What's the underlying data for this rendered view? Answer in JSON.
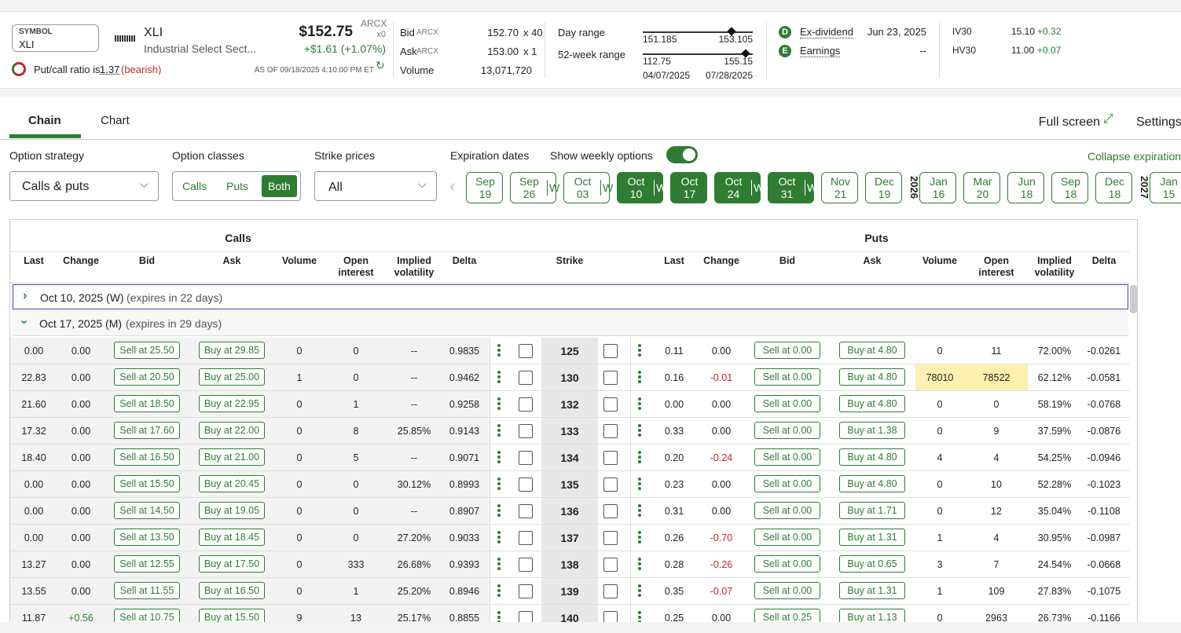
{
  "header": {
    "symbol_label": "SYMBOL",
    "symbol": "XLI",
    "ticker": "XLI",
    "name": "Industrial Select Sect...",
    "price": "$152.75",
    "price_exchange": "ARCX",
    "price_size": "x0",
    "change": "+$1.61 (+1.07%)",
    "as_of": "AS OF 09/18/2025 4:10:00 PM ET",
    "put_call_text": "Put/call ratio is",
    "put_call_ratio": "1.37",
    "put_call_sentiment": "(bearish)",
    "bid_label": "Bid",
    "bid_exchange": "ARCX",
    "bid": "152.70",
    "bid_size": "x 40",
    "ask_label": "Ask",
    "ask_exchange": "ARCX",
    "ask": "153.00",
    "ask_size": "x 1",
    "volume_label": "Volume",
    "volume": "13,071,720",
    "day_range_label": "Day range",
    "day_low": "151.185",
    "day_high": "153.105",
    "week52_label": "52-week range",
    "week52_low": "112.75",
    "week52_high": "155.15",
    "week52_low_date": "04/07/2025",
    "week52_high_date": "07/28/2025",
    "ex_div_icon": "D",
    "ex_div_label": "Ex-dividend",
    "ex_div_date": "Jun 23, 2025",
    "earnings_icon": "E",
    "earnings_label": "Earnings",
    "earnings_date": "--",
    "iv30_label": "IV30",
    "iv30": "15.10",
    "iv30_change": "+0.32",
    "hv30_label": "HV30",
    "hv30": "11.00",
    "hv30_change": "+0.07"
  },
  "tabs": {
    "chain": "Chain",
    "chart": "Chart",
    "full_screen": "Full screen",
    "settings": "Settings"
  },
  "controls": {
    "strategy_label": "Option strategy",
    "strategy": "Calls & puts",
    "classes_label": "Option classes",
    "classes": [
      "Calls",
      "Puts",
      "Both"
    ],
    "strikes_label": "Strike prices",
    "strikes": "All",
    "expirations_label": "Expiration dates",
    "weekly_label": "Show weekly options",
    "collapse": "Collapse expirations"
  },
  "expirations": [
    {
      "month": "Sep",
      "day": "19",
      "selected": false
    },
    {
      "month": "Sep",
      "day": "26",
      "weekly": "W",
      "selected": false
    },
    {
      "month": "Oct",
      "day": "03",
      "weekly": "W",
      "selected": false
    },
    {
      "month": "Oct",
      "day": "10",
      "weekly": "W",
      "selected": true
    },
    {
      "month": "Oct",
      "day": "17",
      "selected": true
    },
    {
      "month": "Oct",
      "day": "24",
      "weekly": "W",
      "selected": true
    },
    {
      "month": "Oct",
      "day": "31",
      "weekly": "W",
      "selected": true
    },
    {
      "month": "Nov",
      "day": "21",
      "selected": false
    },
    {
      "month": "Dec",
      "day": "19",
      "selected": false
    },
    {
      "year": "2026"
    },
    {
      "month": "Jan",
      "day": "16",
      "selected": false
    },
    {
      "month": "Mar",
      "day": "20",
      "selected": false
    },
    {
      "month": "Jun",
      "day": "18",
      "selected": false
    },
    {
      "month": "Sep",
      "day": "18",
      "selected": false
    },
    {
      "month": "Dec",
      "day": "18",
      "selected": false
    },
    {
      "year": "2027"
    },
    {
      "month": "Jan",
      "day": "15",
      "selected": false
    }
  ],
  "chain": {
    "calls_title": "Calls",
    "puts_title": "Puts",
    "strike_title": "Strike",
    "columns": [
      "Last",
      "Change",
      "Bid",
      "Ask",
      "Volume",
      "Open interest",
      "Implied volatility",
      "Delta"
    ],
    "groups": [
      {
        "date": "Oct 10, 2025 (W)",
        "expires": "(expires in 22 days)",
        "expanded": false
      },
      {
        "date": "Oct 17, 2025 (M)",
        "expires": "(expires in 29 days)",
        "expanded": true,
        "rows": [
          {
            "strike": "125",
            "calls": [
              "0.00",
              "0.00",
              "Sell at 25.50",
              "Buy at 29.85",
              "0",
              "0",
              "--",
              "0.9835"
            ],
            "puts": [
              "0.11",
              "0.00",
              "Sell at 0.00",
              "Buy at 4.80",
              "0",
              "11",
              "72.00%",
              "-0.0261"
            ]
          },
          {
            "strike": "130",
            "calls": [
              "22.83",
              "0.00",
              "Sell at 20.50",
              "Buy at 25.00",
              "1",
              "0",
              "--",
              "0.9462"
            ],
            "puts": [
              "0.16",
              "-0.01",
              "Sell at 0.00",
              "Buy at 4.80",
              "78010",
              "78522",
              "62.12%",
              "-0.0581"
            ]
          },
          {
            "strike": "132",
            "calls": [
              "21.60",
              "0.00",
              "Sell at 18.50",
              "Buy at 22.95",
              "0",
              "1",
              "--",
              "0.9258"
            ],
            "puts": [
              "0.00",
              "0.00",
              "Sell at 0.00",
              "Buy at 4.80",
              "0",
              "0",
              "58.19%",
              "-0.0768"
            ]
          },
          {
            "strike": "133",
            "calls": [
              "17.32",
              "0.00",
              "Sell at 17.60",
              "Buy at 22.00",
              "0",
              "8",
              "25.85%",
              "0.9143"
            ],
            "puts": [
              "0.33",
              "0.00",
              "Sell at 0.00",
              "Buy at 1.38",
              "0",
              "9",
              "37.59%",
              "-0.0876"
            ]
          },
          {
            "strike": "134",
            "calls": [
              "18.40",
              "0.00",
              "Sell at 16.50",
              "Buy at 21.00",
              "0",
              "5",
              "--",
              "0.9071"
            ],
            "puts": [
              "0.20",
              "-0.24",
              "Sell at 0.00",
              "Buy at 4.80",
              "4",
              "4",
              "54.25%",
              "-0.0946"
            ]
          },
          {
            "strike": "135",
            "calls": [
              "0.00",
              "0.00",
              "Sell at 15.50",
              "Buy at 20.45",
              "0",
              "0",
              "30.12%",
              "0.8993"
            ],
            "puts": [
              "0.23",
              "0.00",
              "Sell at 0.00",
              "Buy at 4.80",
              "0",
              "10",
              "52.28%",
              "-0.1023"
            ]
          },
          {
            "strike": "136",
            "calls": [
              "0.00",
              "0.00",
              "Sell at 14.50",
              "Buy at 19.05",
              "0",
              "0",
              "--",
              "0.8907"
            ],
            "puts": [
              "0.31",
              "0.00",
              "Sell at 0.00",
              "Buy at 1.71",
              "0",
              "12",
              "35.04%",
              "-0.1108"
            ]
          },
          {
            "strike": "137",
            "calls": [
              "0.00",
              "0.00",
              "Sell at 13.50",
              "Buy at 18.45",
              "0",
              "0",
              "27.20%",
              "0.9033"
            ],
            "puts": [
              "0.26",
              "-0.70",
              "Sell at 0.00",
              "Buy at 1.31",
              "1",
              "4",
              "30.95%",
              "-0.0987"
            ]
          },
          {
            "strike": "138",
            "calls": [
              "13.27",
              "0.00",
              "Sell at 12.55",
              "Buy at 17.50",
              "0",
              "333",
              "26.68%",
              "0.9393"
            ],
            "puts": [
              "0.28",
              "-0.26",
              "Sell at 0.00",
              "Buy at 0.65",
              "3",
              "7",
              "24.54%",
              "-0.0668"
            ]
          },
          {
            "strike": "139",
            "calls": [
              "13.55",
              "0.00",
              "Sell at 11.55",
              "Buy at 16.50",
              "0",
              "1",
              "25.20%",
              "0.8946"
            ],
            "puts": [
              "0.35",
              "-0.07",
              "Sell at 0.00",
              "Buy at 1.31",
              "1",
              "109",
              "27.83%",
              "-0.1075"
            ]
          },
          {
            "strike": "140",
            "calls": [
              "11.87",
              "+0.56",
              "Sell at 10.75",
              "Buy at 15.50",
              "9",
              "13",
              "25.17%",
              "0.8855"
            ],
            "puts": [
              "0.25",
              "0.00",
              "Sell at 0.25",
              "Buy at 1.13",
              "0",
              "2963",
              "26.73%",
              "-0.1166"
            ]
          }
        ]
      }
    ]
  }
}
